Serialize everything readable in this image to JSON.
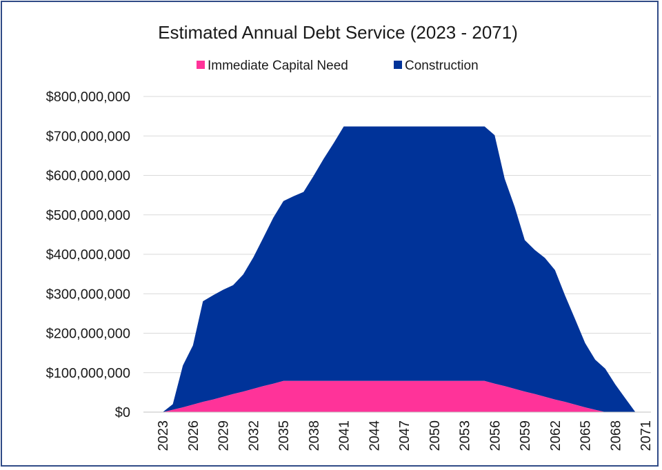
{
  "chart_data": {
    "type": "area",
    "stacked": true,
    "title": "Estimated Annual Debt Service (2023 - 2071)",
    "xlabel": "",
    "ylabel": "",
    "ylim": [
      0,
      800000000
    ],
    "y_ticks": [
      "$0",
      "$100,000,000",
      "$200,000,000",
      "$300,000,000",
      "$400,000,000",
      "$500,000,000",
      "$600,000,000",
      "$700,000,000",
      "$800,000,000"
    ],
    "x_ticks": [
      "2023",
      "2026",
      "2029",
      "2032",
      "2035",
      "2038",
      "2041",
      "2044",
      "2047",
      "2050",
      "2053",
      "2056",
      "2059",
      "2062",
      "2065",
      "2068",
      "2071"
    ],
    "grid": true,
    "legend_position": "top",
    "x": [
      2023,
      2024,
      2025,
      2026,
      2027,
      2028,
      2029,
      2030,
      2031,
      2032,
      2033,
      2034,
      2035,
      2036,
      2037,
      2038,
      2039,
      2040,
      2041,
      2042,
      2043,
      2044,
      2045,
      2046,
      2047,
      2048,
      2049,
      2050,
      2051,
      2052,
      2053,
      2054,
      2055,
      2056,
      2057,
      2058,
      2059,
      2060,
      2061,
      2062,
      2063,
      2064,
      2065,
      2066,
      2067,
      2068,
      2069,
      2070,
      2071
    ],
    "series": [
      {
        "name": "Immediate Capital Need",
        "color": "#ff3399",
        "values": [
          0,
          6000000,
          12000000,
          19000000,
          26000000,
          32000000,
          39000000,
          46000000,
          52000000,
          59000000,
          66000000,
          72000000,
          79000000,
          79000000,
          79000000,
          79000000,
          79000000,
          79000000,
          79000000,
          79000000,
          79000000,
          79000000,
          79000000,
          79000000,
          79000000,
          79000000,
          79000000,
          79000000,
          79000000,
          79000000,
          79000000,
          79000000,
          79000000,
          72000000,
          66000000,
          59000000,
          52000000,
          46000000,
          39000000,
          32000000,
          26000000,
          19000000,
          12000000,
          6000000,
          0,
          0,
          0,
          0,
          0
        ]
      },
      {
        "name": "Construction",
        "color": "#003399",
        "values": [
          0,
          14000000,
          106000000,
          150000000,
          255000000,
          264000000,
          271000000,
          276000000,
          297000000,
          333000000,
          376000000,
          421000000,
          456000000,
          468000000,
          479000000,
          520000000,
          563000000,
          603000000,
          645000000,
          645000000,
          645000000,
          645000000,
          645000000,
          645000000,
          645000000,
          645000000,
          645000000,
          645000000,
          645000000,
          645000000,
          645000000,
          645000000,
          645000000,
          630000000,
          526000000,
          461000000,
          384000000,
          365000000,
          352000000,
          328000000,
          270000000,
          217000000,
          163000000,
          127000000,
          110000000,
          70000000,
          35000000,
          0,
          0
        ]
      }
    ]
  }
}
